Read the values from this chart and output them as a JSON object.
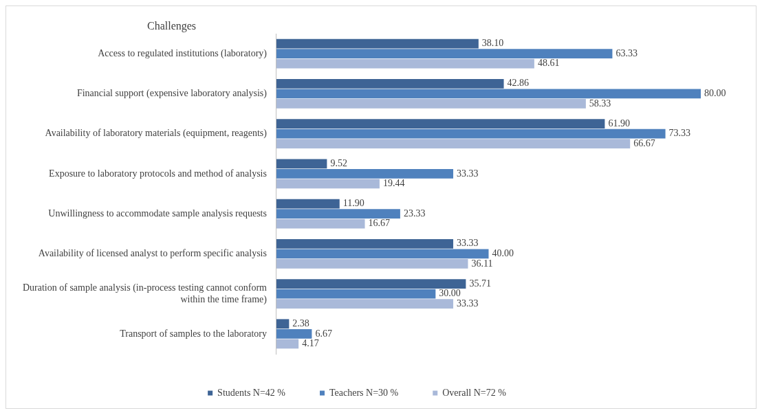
{
  "chart_data": {
    "type": "bar",
    "orientation": "horizontal",
    "title": "Challenges",
    "categories": [
      "Access to regulated institutions (laboratory)",
      "Financial support (expensive laboratory analysis)",
      "Availability of laboratory materials (equipment, reagents)",
      "Exposure to laboratory protocols and method of analysis",
      "Unwillingness to accommodate sample analysis requests",
      "Availability of licensed analyst to perform specific analysis",
      "Duration of sample analysis (in-process testing cannot conform within the time frame)",
      "Transport of samples to the laboratory"
    ],
    "series": [
      {
        "name": "Students N=42 %",
        "color": "#3e6495",
        "values": [
          38.1,
          42.86,
          61.9,
          9.52,
          11.9,
          33.33,
          35.71,
          2.38
        ],
        "value_labels": [
          "38.10",
          "42.86",
          "61.90",
          "9.52",
          "11.90",
          "33.33",
          "35.71",
          "2.38"
        ]
      },
      {
        "name": "Teachers N=30 %",
        "color": "#4f81bd",
        "values": [
          63.33,
          80.0,
          73.33,
          33.33,
          23.33,
          40.0,
          30.0,
          6.67
        ],
        "value_labels": [
          "63.33",
          "80.00",
          "73.33",
          "33.33",
          "23.33",
          "40.00",
          "30.00",
          "6.67"
        ]
      },
      {
        "name": "Overall N=72 %",
        "color": "#a9b9d9",
        "values": [
          48.61,
          58.33,
          66.67,
          19.44,
          16.67,
          36.11,
          33.33,
          4.17
        ],
        "value_labels": [
          "48.61",
          "58.33",
          "66.67",
          "19.44",
          "16.67",
          "36.11",
          "33.33",
          "4.17"
        ]
      }
    ],
    "legend": "bottom"
  }
}
